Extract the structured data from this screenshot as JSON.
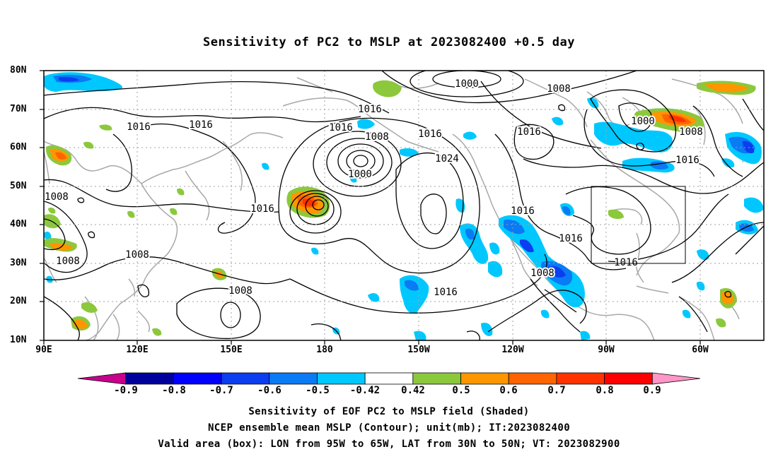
{
  "title": "Sensitivity of PC2 to MSLP at 2023082400 +0.5 day",
  "lat_labels": [
    "80N",
    "70N",
    "60N",
    "50N",
    "40N",
    "30N",
    "20N",
    "10N"
  ],
  "lon_labels": [
    "90E",
    "120E",
    "150E",
    "180",
    "150W",
    "120W",
    "90W",
    "60W"
  ],
  "contour_labels": [
    "1000",
    "1008",
    "1016",
    "1016",
    "1016",
    "1016",
    "1016",
    "1008",
    "1016",
    "1024",
    "1000",
    "1016",
    "1008",
    "1000",
    "1016",
    "1008",
    "1008",
    "1016",
    "1016",
    "1008",
    "1016",
    "1008",
    "1016",
    "1008"
  ],
  "colorbar": {
    "labels": [
      "-0.9",
      "-0.8",
      "-0.7",
      "-0.6",
      "-0.5",
      "-0.42",
      "0.42",
      "0.5",
      "0.6",
      "0.7",
      "0.8",
      "0.9"
    ],
    "colors": [
      "#c8008c",
      "#00009c",
      "#0000ff",
      "#0a3ef0",
      "#0a7af5",
      "#00c8ff",
      "#ffffff",
      "#8cc83c",
      "#ff9600",
      "#ff6400",
      "#ff3200",
      "#ff0000",
      "#ff96c8"
    ]
  },
  "valid_box": {
    "lon_from": "95W",
    "lon_to": "65W",
    "lat_from": "30N",
    "lat_to": "50N"
  },
  "captions": {
    "line1": "Sensitivity of EOF PC2 to MSLP field (Shaded)",
    "line2": "NCEP ensemble mean MSLP (Contour); unit(mb); IT:2023082400",
    "line3": "Valid area (box): LON from 95W to 65W, LAT from 30N to 50N; VT: 2023082900"
  }
}
